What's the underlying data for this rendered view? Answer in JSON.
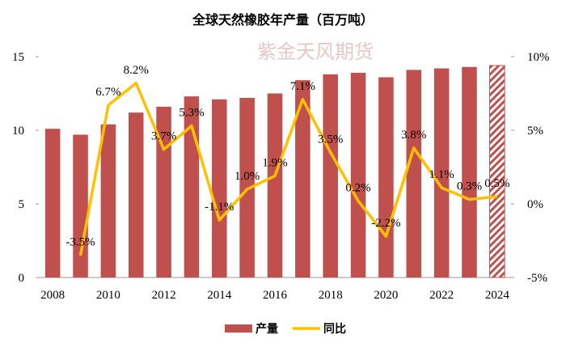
{
  "chart_data": {
    "type": "bar-line",
    "title": "全球天然橡胶年产量（百万吨）",
    "watermark": "紫金天风期货",
    "categories": [
      "2008",
      null,
      "2010",
      null,
      "2012",
      null,
      "2014",
      null,
      "2016",
      null,
      "2018",
      null,
      "2020",
      null,
      "2022",
      null,
      "2024"
    ],
    "series": [
      {
        "name": "产量",
        "type": "bar",
        "color": "#c0504d",
        "values": [
          10.1,
          9.7,
          10.4,
          11.2,
          11.6,
          12.3,
          12.1,
          12.2,
          12.5,
          13.4,
          13.8,
          13.9,
          13.6,
          14.1,
          14.2,
          14.3,
          14.4
        ],
        "hatched": [
          false,
          false,
          false,
          false,
          false,
          false,
          false,
          false,
          false,
          false,
          false,
          false,
          false,
          false,
          false,
          false,
          true
        ]
      },
      {
        "name": "同比",
        "type": "line",
        "axis": "y2",
        "color": "#ffc000",
        "values": [
          null,
          -3.5,
          6.7,
          8.2,
          3.7,
          5.3,
          -1.1,
          1.0,
          1.9,
          7.1,
          3.5,
          0.2,
          -2.2,
          3.8,
          1.1,
          0.3,
          0.5
        ],
        "value_labels": [
          null,
          "-3.5%",
          "6.7%",
          "8.2%",
          "3.7%",
          "5.3%",
          "-1.1%",
          "1.0%",
          "1.9%",
          "7.1%",
          "3.5%",
          "0.2%",
          "-2.2%",
          "3.8%",
          "1.1%",
          "0.3%",
          "0.5%"
        ]
      }
    ],
    "ylim": [
      0,
      15
    ],
    "yticks": [
      0,
      5,
      10,
      15
    ],
    "y2lim": [
      -5,
      10
    ],
    "y2ticks": [
      {
        "value": -5,
        "label": "-5%"
      },
      {
        "value": 0,
        "label": "0%"
      },
      {
        "value": 5,
        "label": "5%"
      },
      {
        "value": 10,
        "label": "10%"
      }
    ],
    "legend": "bottom"
  }
}
